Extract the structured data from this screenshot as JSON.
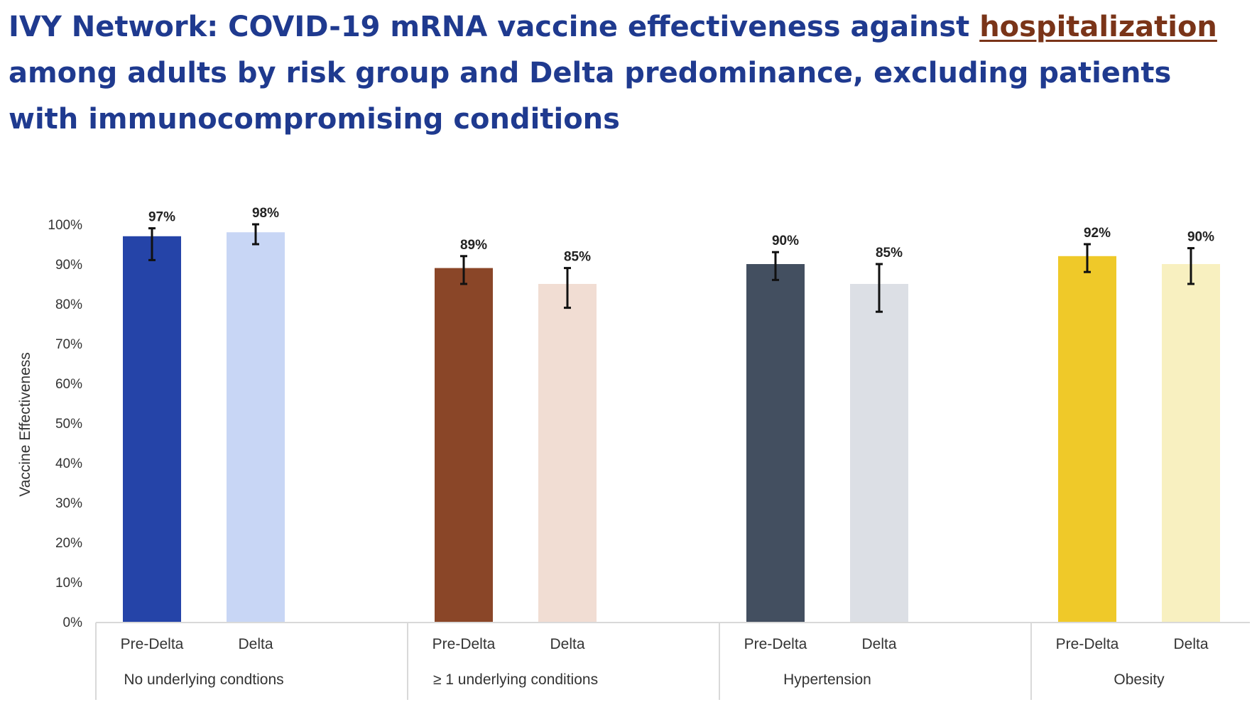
{
  "title": {
    "prefix": "IVY Network: COVID-19 mRNA vaccine effectiveness against ",
    "highlight": "hospitalization",
    "suffix": " among adults by risk group and Delta predominance, excluding patients with immunocompromising conditions"
  },
  "colors": {
    "title": "#1f3a8f",
    "highlight": "#7a3418",
    "axis": "#d9d9d9",
    "error_bar": "#111111"
  },
  "chart_data": {
    "type": "bar",
    "title": "",
    "xlabel": "",
    "ylabel": "Vaccine Effectiveness",
    "ylim": [
      0,
      100
    ],
    "yticks": [
      "0%",
      "10%",
      "20%",
      "30%",
      "40%",
      "50%",
      "60%",
      "70%",
      "80%",
      "90%",
      "100%"
    ],
    "grid": false,
    "legend": "none",
    "groups": [
      {
        "name": "No underlying condtions",
        "bars": [
          {
            "label": "Pre-Delta",
            "value": 97,
            "value_label": "97%",
            "ci": [
              91,
              99
            ],
            "color": "#2544a8"
          },
          {
            "label": "Delta",
            "value": 98,
            "value_label": "98%",
            "ci": [
              95,
              100
            ],
            "color": "#c8d6f5"
          }
        ]
      },
      {
        "name": "≥ 1 underlying conditions",
        "bars": [
          {
            "label": "Pre-Delta",
            "value": 89,
            "value_label": "89%",
            "ci": [
              85,
              92
            ],
            "color": "#8a4628"
          },
          {
            "label": "Delta",
            "value": 85,
            "value_label": "85%",
            "ci": [
              79,
              89
            ],
            "color": "#f1ddd3"
          }
        ]
      },
      {
        "name": "Hypertension",
        "bars": [
          {
            "label": "Pre-Delta",
            "value": 90,
            "value_label": "90%",
            "ci": [
              86,
              93
            ],
            "color": "#434f60"
          },
          {
            "label": "Delta",
            "value": 85,
            "value_label": "85%",
            "ci": [
              78,
              90
            ],
            "color": "#dcdfe5"
          }
        ]
      },
      {
        "name": "Obesity",
        "bars": [
          {
            "label": "Pre-Delta",
            "value": 92,
            "value_label": "92%",
            "ci": [
              88,
              95
            ],
            "color": "#efc929"
          },
          {
            "label": "Delta",
            "value": 90,
            "value_label": "90%",
            "ci": [
              85,
              94
            ],
            "color": "#f8f0c0"
          }
        ]
      }
    ]
  }
}
